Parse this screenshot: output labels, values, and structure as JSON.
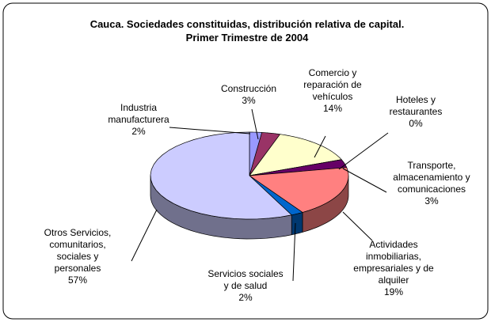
{
  "chart_data": {
    "type": "pie",
    "title": "Cauca.  Sociedades constituidas, distribución relativa de capital.",
    "subtitle": "Primer Trimestre de 2004",
    "categories": [
      "Industria manufacturera",
      "Construcción",
      "Comercio y reparación de vehículos",
      "Hoteles y restaurantes",
      "Transporte, almacenamiento y comunicaciones",
      "Actividades inmobiliarias, empresariales y de alquiler",
      "Servicios sociales y de salud",
      "Otros Servicios, comunitarios, sociales y personales"
    ],
    "values": [
      2,
      3,
      14,
      0,
      3,
      19,
      2,
      57
    ],
    "value_labels": [
      "2%",
      "3%",
      "14%",
      "0%",
      "3%",
      "19%",
      "2%",
      "57%"
    ],
    "colors": [
      "#9999ff",
      "#993366",
      "#ffffcc",
      "#ccffff",
      "#660066",
      "#ff8080",
      "#0066cc",
      "#ccccff"
    ]
  }
}
